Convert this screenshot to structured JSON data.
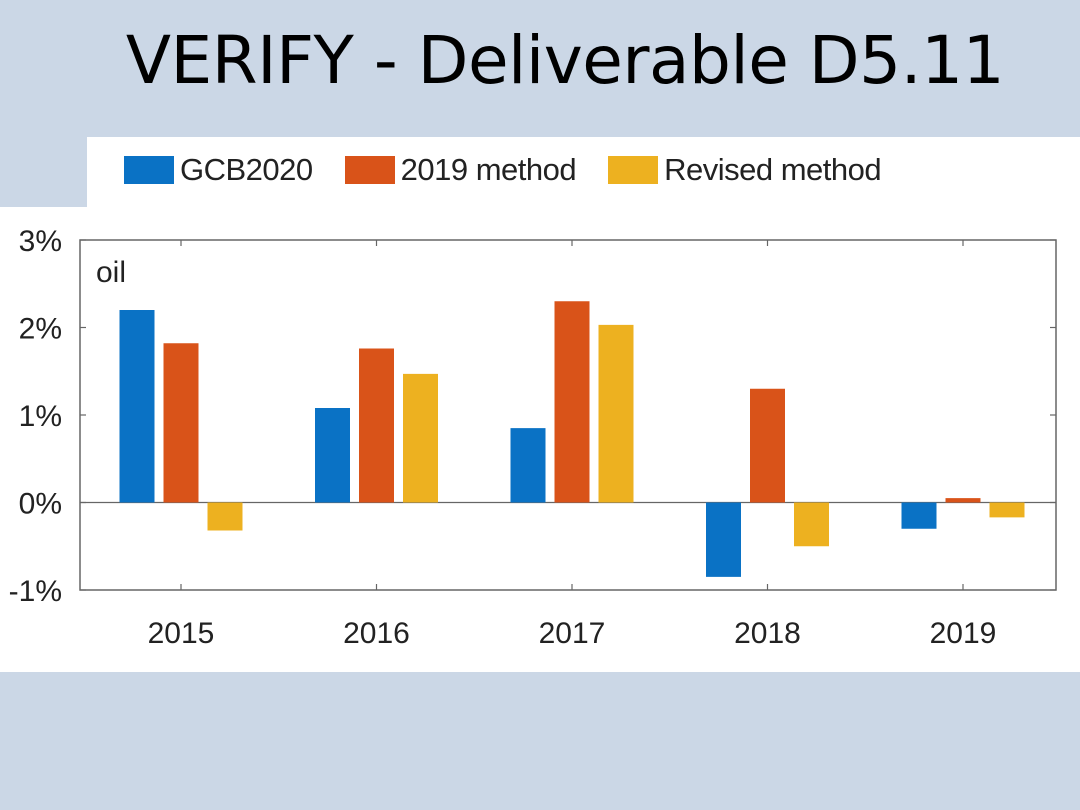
{
  "slide": {
    "title": "VERIFY - Deliverable D5.11"
  },
  "colors": {
    "background": "#cbd7e6",
    "panel": "#ffffff",
    "gcb2020": "#0a72c5",
    "method2019": "#d95319",
    "revised": "#edb120"
  },
  "chart_data": {
    "type": "bar",
    "panel_label": "oil",
    "categories": [
      "2015",
      "2016",
      "2017",
      "2018",
      "2019"
    ],
    "series": [
      {
        "name": "GCB2020",
        "color": "#0a72c5",
        "values": [
          2.2,
          1.08,
          0.85,
          -0.85,
          -0.3
        ]
      },
      {
        "name": "2019 method",
        "color": "#d95319",
        "values": [
          1.82,
          1.76,
          2.3,
          1.3,
          0.05
        ]
      },
      {
        "name": "Revised method",
        "color": "#edb120",
        "values": [
          -0.32,
          1.47,
          2.03,
          -0.5,
          -0.17
        ]
      }
    ],
    "yticks": [
      "3%",
      "2%",
      "1%",
      "0%",
      "-1%"
    ],
    "ylim": [
      -1,
      3
    ],
    "legend": "top",
    "grid": false
  }
}
